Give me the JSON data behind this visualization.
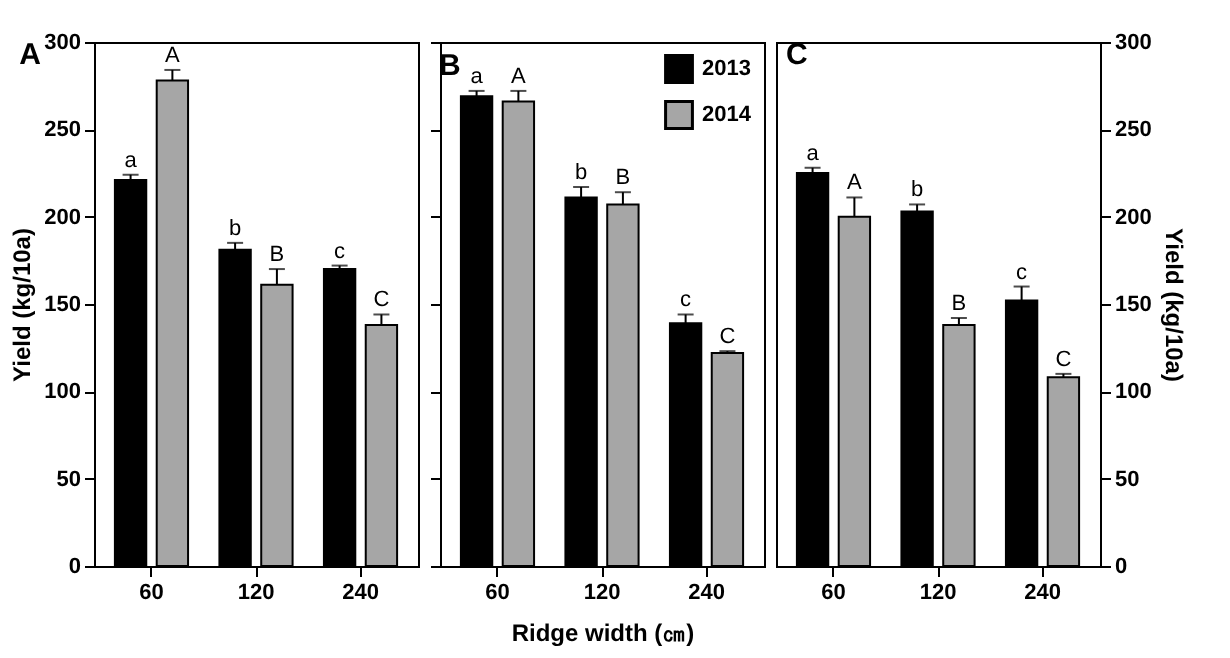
{
  "chart_data": [
    {
      "type": "bar",
      "title": "A",
      "categories": [
        "60",
        "120",
        "240"
      ],
      "ylabel": "Yield (kg/10a)",
      "ylim": [
        0,
        300
      ],
      "yticks": [
        0,
        50,
        100,
        150,
        200,
        250,
        300
      ],
      "grid": false,
      "legend": false,
      "series": [
        {
          "color": "#000000",
          "values": [
            221,
            181,
            170
          ],
          "errors": [
            3,
            4,
            2
          ],
          "value_labels": [
            "a",
            "b",
            "c"
          ]
        },
        {
          "color": "#a6a6a6",
          "values": [
            278,
            161,
            138
          ],
          "errors": [
            6,
            9,
            6
          ],
          "value_labels": [
            "A",
            "B",
            "C"
          ]
        }
      ]
    },
    {
      "type": "bar",
      "title": "B",
      "categories": [
        "60",
        "120",
        "240"
      ],
      "xlabel": "Ridge width (㎝)",
      "ylim": [
        0,
        300
      ],
      "yticks": [
        0,
        50,
        100,
        150,
        200,
        250,
        300
      ],
      "tick_labels": "x",
      "grid": false,
      "legend": "top right",
      "series": [
        {
          "name": "2013",
          "color": "#000000",
          "values": [
            269,
            211,
            139
          ],
          "errors": [
            3,
            6,
            5
          ],
          "value_labels": [
            "a",
            "b",
            "c"
          ]
        },
        {
          "name": "2014",
          "color": "#a6a6a6",
          "values": [
            266,
            207,
            122
          ],
          "errors": [
            6,
            7,
            1
          ],
          "value_labels": [
            "A",
            "B",
            "C"
          ]
        }
      ]
    },
    {
      "type": "bar",
      "title": "C",
      "categories": [
        "60",
        "120",
        "240"
      ],
      "y2label": "Yield (kg/10a)",
      "y2lim": [
        0,
        300
      ],
      "y2ticks": [
        0,
        50,
        100,
        150,
        200,
        250,
        300
      ],
      "grid": false,
      "legend": false,
      "series": [
        {
          "axis": "y2",
          "color": "#000000",
          "values": [
            225,
            203,
            152
          ],
          "errors": [
            3,
            4,
            8
          ],
          "value_labels": [
            "a",
            "b",
            "c"
          ]
        },
        {
          "axis": "y2",
          "color": "#a6a6a6",
          "values": [
            200,
            138,
            108
          ],
          "errors": [
            11,
            4,
            2
          ],
          "value_labels": [
            "A",
            "B",
            "C"
          ]
        }
      ]
    }
  ]
}
